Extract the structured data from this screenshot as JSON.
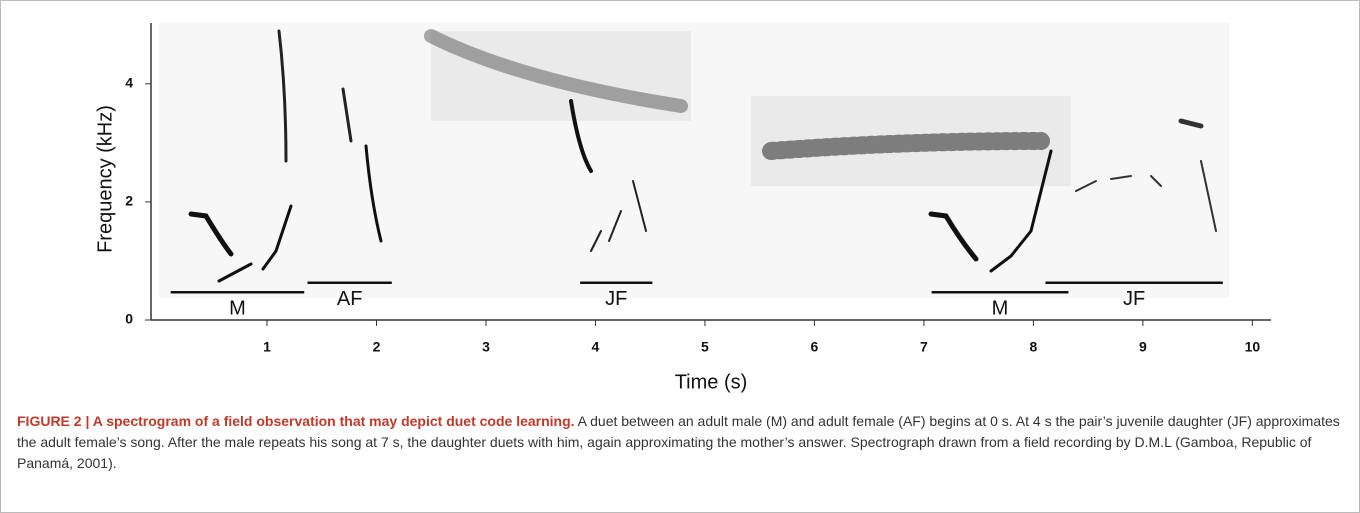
{
  "chart_data": {
    "type": "spectrogram",
    "x_label": "Time (s)",
    "y_label": "Frequency (kHz)",
    "xlim": [
      0,
      10.17
    ],
    "ylim": [
      0,
      5.03
    ],
    "xticks": [
      1,
      2,
      3,
      4,
      5,
      6,
      7,
      8,
      9,
      10
    ],
    "yticks": [
      0,
      2,
      4
    ],
    "segments": [
      {
        "label": "M",
        "start": 0.12,
        "end": 1.34,
        "freq": 0.47
      },
      {
        "label": "AF",
        "start": 1.37,
        "end": 2.14,
        "freq": 0.63
      },
      {
        "label": "JF",
        "start": 3.86,
        "end": 4.52,
        "freq": 0.63
      },
      {
        "label": "M",
        "start": 7.07,
        "end": 8.32,
        "freq": 0.47
      },
      {
        "label": "JF",
        "start": 8.11,
        "end": 9.73,
        "freq": 0.63
      }
    ]
  },
  "caption": {
    "title": "FIGURE 2 | A spectrogram of a field observation that may depict duet code learning.",
    "text": "A duet between an adult male (M) and adult female (AF) begins at 0 s. At 4 s the pair’s juvenile daughter (JF) approximates the adult female’s song. After the male repeats his song at 7 s, the daughter duets with him, again approximating the mother’s answer. Spectrograph drawn from a field recording by D.M.L (Gamboa, Republic of Panamá, 2001)."
  }
}
